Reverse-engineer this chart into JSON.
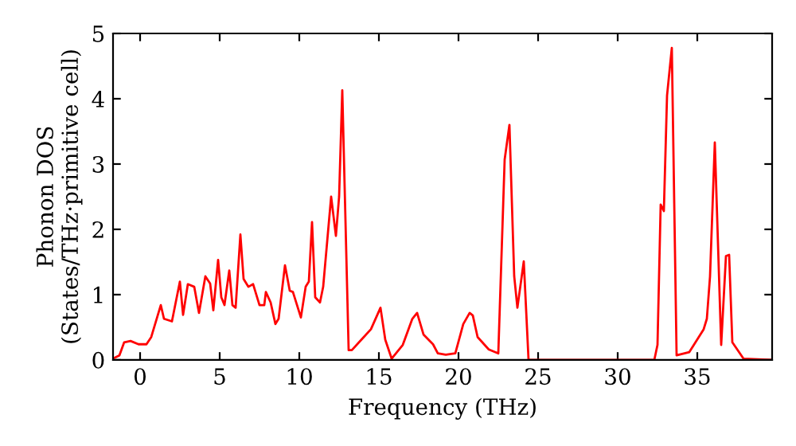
{
  "chart_data": {
    "type": "line",
    "xlabel": "Frequency (THz)",
    "ylabel": "Phonon DOS\n(States/THz·primitive cell)",
    "xlim": [
      -1.7,
      39.7
    ],
    "ylim": [
      0,
      5
    ],
    "xticks": [
      0,
      5,
      10,
      15,
      20,
      25,
      30,
      35
    ],
    "yticks": [
      0,
      1,
      2,
      3,
      4,
      5
    ],
    "grid": false,
    "legend": false,
    "marker": "none",
    "line_style": "solid",
    "series": [
      {
        "color": "#ff0000",
        "x": [
          -1.7,
          -1.3,
          -1.0,
          -0.6,
          -0.1,
          0.4,
          0.7,
          1.3,
          1.5,
          2.0,
          2.5,
          2.7,
          3.0,
          3.4,
          3.7,
          4.1,
          4.4,
          4.6,
          4.9,
          5.1,
          5.3,
          5.6,
          5.8,
          6.0,
          6.3,
          6.5,
          6.8,
          7.1,
          7.5,
          7.8,
          7.9,
          8.2,
          8.5,
          8.7,
          9.1,
          9.4,
          9.6,
          10.1,
          10.4,
          10.6,
          10.8,
          11.0,
          11.3,
          11.5,
          12.0,
          12.3,
          12.5,
          12.7,
          13.1,
          13.3,
          13.9,
          14.5,
          15.1,
          15.4,
          15.8,
          16.5,
          17.1,
          17.4,
          17.8,
          18.4,
          18.7,
          19.2,
          19.8,
          20.3,
          20.7,
          20.9,
          21.2,
          21.9,
          22.5,
          22.9,
          23.2,
          23.5,
          23.7,
          24.1,
          24.4,
          32.3,
          32.5,
          32.7,
          32.9,
          33.1,
          33.4,
          33.7,
          34.5,
          35.4,
          35.6,
          35.8,
          36.1,
          36.5,
          36.8,
          37.0,
          37.2,
          37.9,
          39.7
        ],
        "values": [
          0.02,
          0.07,
          0.27,
          0.29,
          0.24,
          0.24,
          0.35,
          0.84,
          0.63,
          0.59,
          1.2,
          0.69,
          1.16,
          1.12,
          0.72,
          1.28,
          1.17,
          0.76,
          1.53,
          0.96,
          0.84,
          1.37,
          0.84,
          0.8,
          1.92,
          1.24,
          1.12,
          1.16,
          0.84,
          0.84,
          1.04,
          0.88,
          0.55,
          0.63,
          1.45,
          1.06,
          1.04,
          0.65,
          1.12,
          1.2,
          2.11,
          0.96,
          0.88,
          1.12,
          2.5,
          1.9,
          2.5,
          4.13,
          0.15,
          0.15,
          0.31,
          0.47,
          0.8,
          0.31,
          0.02,
          0.23,
          0.63,
          0.72,
          0.39,
          0.24,
          0.1,
          0.08,
          0.1,
          0.55,
          0.72,
          0.68,
          0.35,
          0.16,
          0.1,
          3.07,
          3.6,
          1.28,
          0.8,
          1.51,
          0.0,
          0.0,
          0.23,
          2.38,
          2.28,
          4.05,
          4.78,
          0.07,
          0.12,
          0.47,
          0.63,
          1.28,
          3.33,
          0.23,
          1.59,
          1.61,
          0.27,
          0.02,
          0.0
        ]
      }
    ]
  }
}
